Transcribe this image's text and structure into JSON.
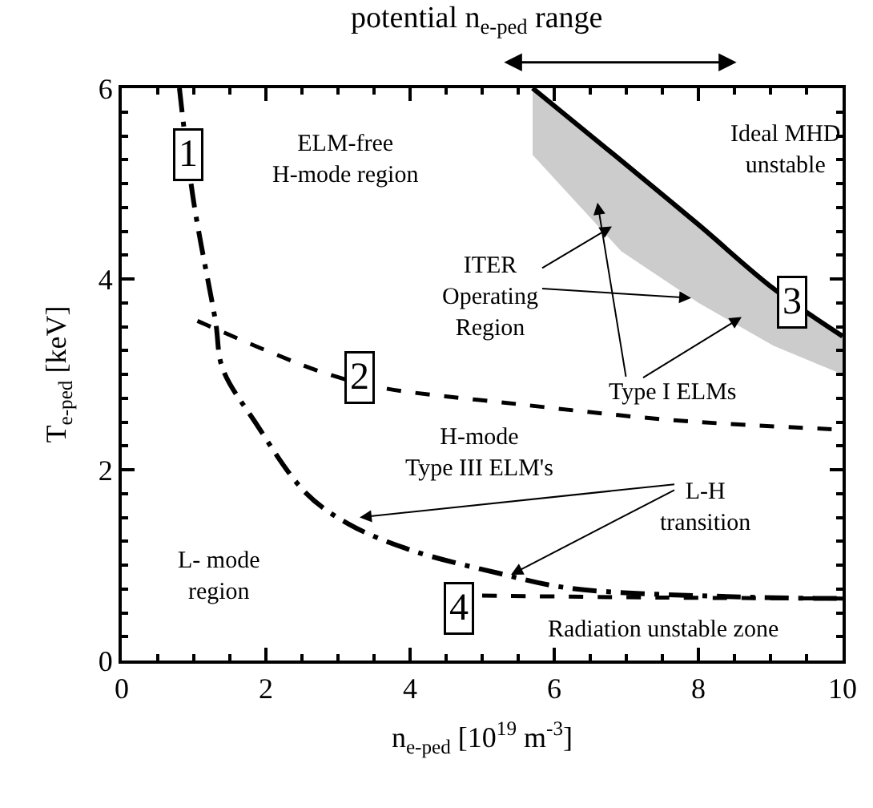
{
  "chart_data": {
    "type": "line",
    "title": "potential n$_{e-ped}$ range",
    "xlabel": "n$_{e-ped}$ [10$^{19}$ m$^{-3}$]",
    "ylabel": "T$_{e-ped}$ [keV]",
    "xlim": [
      0,
      10
    ],
    "xticks": [
      0,
      2,
      4,
      6,
      8,
      10
    ],
    "ylim": [
      0,
      6
    ],
    "yticks": [
      0,
      2,
      4,
      6
    ],
    "marker": "none",
    "series": [
      {
        "color": "#000000",
        "line_style": "dashdot",
        "x": [
          0.8,
          1.0,
          1.3,
          1.4,
          1.85,
          2.55,
          3.15,
          4.0,
          5.2,
          6.2,
          8.4,
          10
        ],
        "values": [
          6,
          4.8,
          3.56,
          3.06,
          2.5,
          1.76,
          1.43,
          1.16,
          0.92,
          0.76,
          0.67,
          0.65
        ]
      },
      {
        "color": "#000000",
        "line_style": "dashed",
        "x": [
          1.05,
          2.07,
          2.87,
          3.6,
          5.47,
          7.65,
          10
        ],
        "values": [
          3.56,
          3.23,
          3.0,
          2.86,
          2.69,
          2.52,
          2.42
        ]
      },
      {
        "color": "#000000",
        "line_style": "solid",
        "x": [
          5.7,
          6.93,
          8.0,
          9.04,
          10
        ],
        "values": [
          6,
          5.24,
          4.57,
          3.9,
          3.4
        ],
        "lower": [
          5.3,
          4.29,
          3.75,
          3.3,
          3.0
        ],
        "upper": [
          6,
          5.24,
          4.57,
          3.9,
          3.4
        ]
      },
      {
        "color": "#000000",
        "line_style": "dashed",
        "x": [
          5.0,
          7.5,
          10
        ],
        "values": [
          0.68,
          0.66,
          0.65
        ]
      }
    ],
    "annotations": [
      {
        "text": "1",
        "x": 0.93,
        "y": 5.3
      },
      {
        "text": "2",
        "x": 3.3,
        "y": 2.97
      },
      {
        "text": "3",
        "x": 9.3,
        "y": 3.76
      },
      {
        "text": "4",
        "x": 4.68,
        "y": 0.54
      },
      "ELM-free\nH-mode region",
      "Ideal MHD\nunstable",
      {
        "text": "ITER\nOperating\nRegion",
        "x": 7.9,
        "y": 3.8
      },
      "Type I ELMs",
      "H-mode\nType III ELM's",
      {
        "text": "L-H\ntransition",
        "x": 5.4,
        "y": 0.9
      },
      "L- mode\nregion",
      "Radiation unstable zone"
    ]
  }
}
